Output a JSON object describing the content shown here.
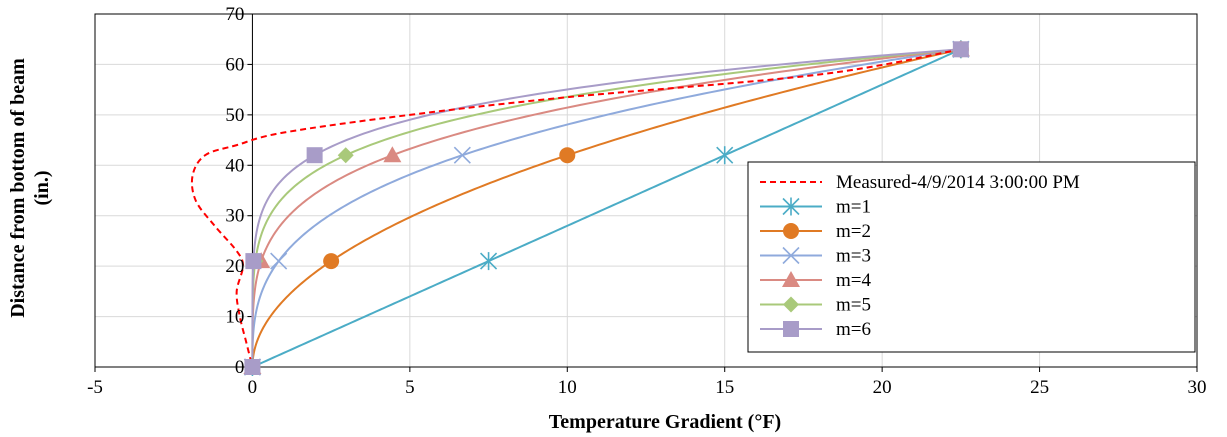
{
  "chart_data": {
    "type": "line",
    "title": "",
    "xlabel": "Temperature Gradient (°F)",
    "ylabel_line1": "Distance from bottom of beam",
    "ylabel_line2": "(in.)",
    "xlim": [
      -5,
      30
    ],
    "ylim": [
      0,
      70
    ],
    "x_ticks": [
      -5,
      0,
      5,
      10,
      15,
      20,
      25,
      30
    ],
    "y_ticks": [
      0,
      10,
      20,
      30,
      40,
      50,
      60,
      70
    ],
    "grid": true,
    "legend_position": "right",
    "measured": {
      "name": "Measured-4/9/2014  3:00:00 PM",
      "color": "#ff0000",
      "dash": true,
      "points": [
        [
          22.5,
          63
        ],
        [
          18,
          58
        ],
        [
          10,
          53.5
        ],
        [
          5,
          50
        ],
        [
          1,
          46.5
        ],
        [
          -0.5,
          44
        ],
        [
          -1.5,
          42
        ],
        [
          -1.9,
          38
        ],
        [
          -1.8,
          33
        ],
        [
          -1.2,
          28
        ],
        [
          -0.5,
          23
        ],
        [
          -0.3,
          20
        ],
        [
          -0.5,
          15
        ],
        [
          -0.4,
          10
        ],
        [
          -0.2,
          5
        ],
        [
          0,
          0
        ]
      ]
    },
    "series": [
      {
        "name": "m=1",
        "m": 1,
        "color": "#4bacc6",
        "marker": "star"
      },
      {
        "name": "m=2",
        "m": 2,
        "color": "#e07a24",
        "marker": "circle"
      },
      {
        "name": "m=3",
        "m": 3,
        "color": "#8faadc",
        "marker": "x"
      },
      {
        "name": "m=4",
        "m": 4,
        "color": "#da8a82",
        "marker": "triangle"
      },
      {
        "name": "m=5",
        "m": 5,
        "color": "#a9c97a",
        "marker": "diamond"
      },
      {
        "name": "m=6",
        "m": 6,
        "color": "#a89cc8",
        "marker": "square"
      }
    ],
    "marker_heights": [
      0,
      21,
      42,
      63
    ],
    "top_value": 22.5,
    "top_height": 63
  }
}
